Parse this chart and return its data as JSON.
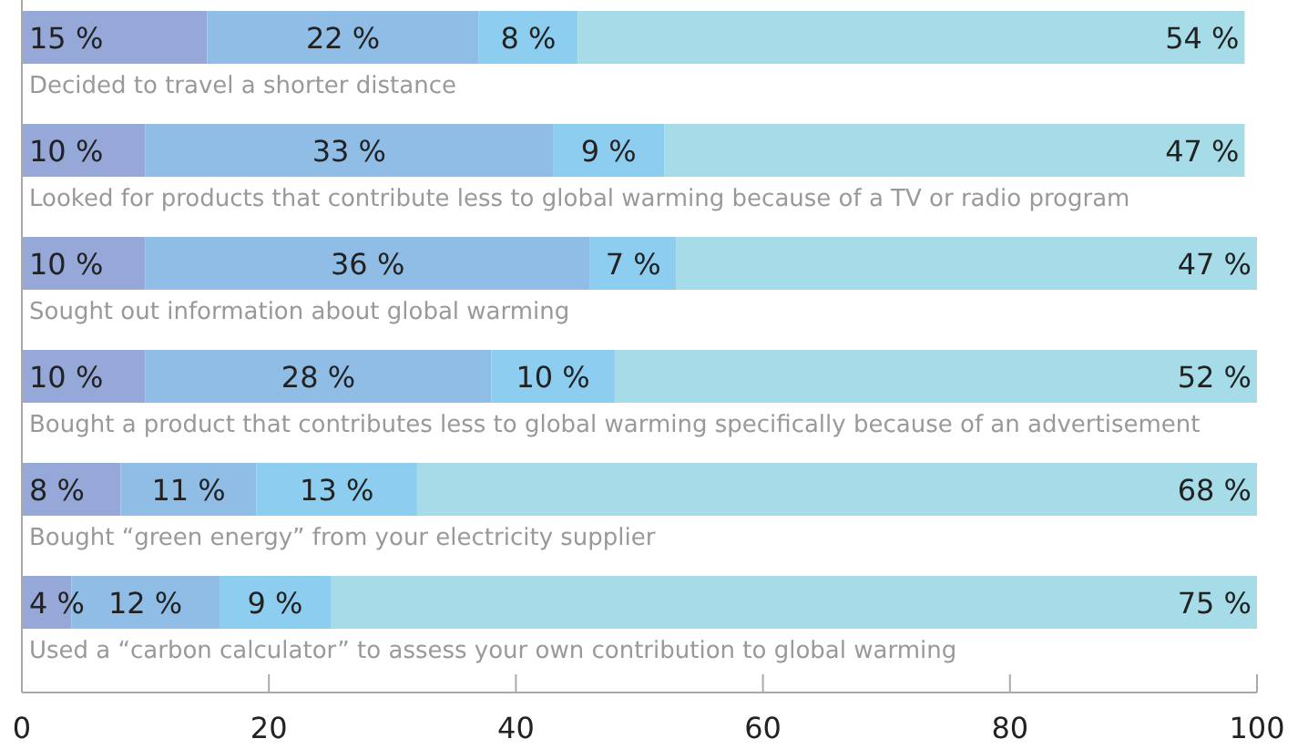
{
  "chart_data": {
    "type": "bar",
    "orientation": "horizontal",
    "stacked": true,
    "categories": [
      "Decided to travel a shorter distance",
      "Looked for products that contribute less to global warming because of a TV or radio program",
      "Sought out information about global warming",
      "Bought a product that contributes less to global warming specifically because of an advertisement",
      "Bought “green energy” from your electricity supplier",
      "Used a “carbon calculator” to assess your own contribution to global warming"
    ],
    "series": [
      {
        "color": "#95a8d8",
        "values": [
          15,
          10,
          10,
          10,
          8,
          4
        ],
        "value_labels": [
          "15 %",
          "10 %",
          "10 %",
          "10 %",
          "8 %",
          "4 %"
        ]
      },
      {
        "color": "#90bde6",
        "values": [
          22,
          33,
          36,
          28,
          11,
          12
        ],
        "value_labels": [
          "22 %",
          "33 %",
          "36 %",
          "28 %",
          "11 %",
          "12 %"
        ]
      },
      {
        "color": "#8ccdf0",
        "values": [
          8,
          9,
          7,
          10,
          13,
          9
        ],
        "value_labels": [
          "8 %",
          "9 %",
          "7 %",
          "10 %",
          "13 %",
          "9 %"
        ]
      },
      {
        "color": "#a6dce8",
        "values": [
          54,
          47,
          47,
          52,
          68,
          75
        ],
        "value_labels": [
          "54 %",
          "47 %",
          "47 %",
          "52 %",
          "68 %",
          "75 %"
        ]
      }
    ],
    "xlim": [
      0,
      100
    ],
    "xticks": [
      0,
      20,
      40,
      60,
      80,
      100
    ],
    "grid": false
  }
}
